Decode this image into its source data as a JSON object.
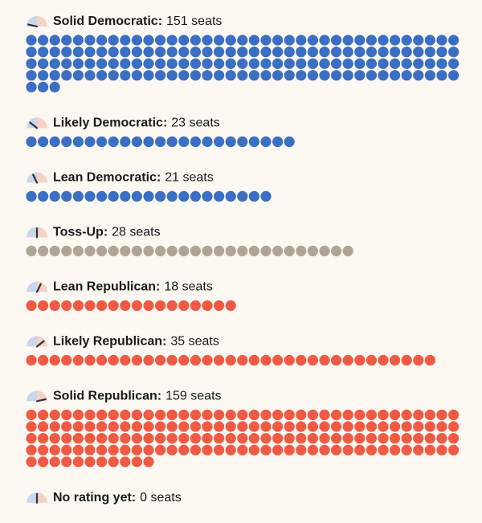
{
  "chart_data": {
    "type": "dots",
    "categories": [
      "Solid Democratic:",
      "Likely Democratic:",
      "Lean Democratic:",
      "Toss-Up:",
      "Lean Republican:",
      "Likely Republican:",
      "Solid Republican:",
      "No rating yet:"
    ],
    "values": [
      151,
      23,
      21,
      28,
      18,
      35,
      159,
      0
    ],
    "value_labels": [
      "151 seats",
      "23 seats",
      "21 seats",
      "28 seats",
      "18 seats",
      "35 seats",
      "159 seats",
      "0 seats"
    ],
    "colors": [
      "#3a6fc4",
      "#3a6fc4",
      "#3a6fc4",
      "#b0a595",
      "#f05a44",
      "#f05a44",
      "#f05a44",
      null
    ]
  }
}
